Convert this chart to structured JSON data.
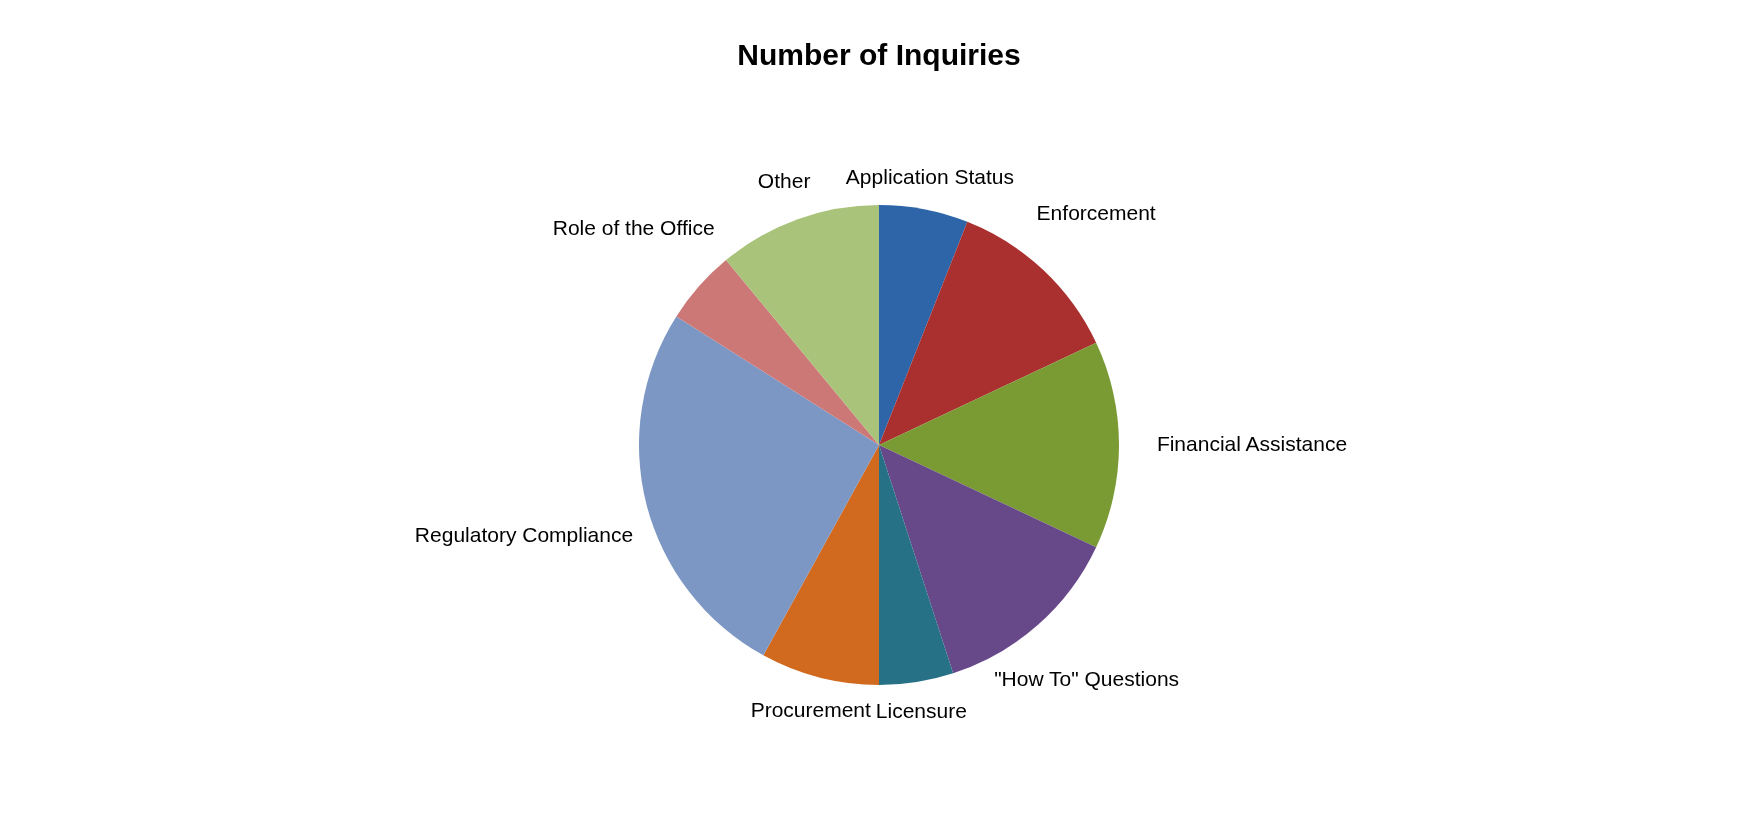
{
  "chart_data": {
    "type": "pie",
    "title": "Number of Inquiries",
    "categories": [
      "Application Status",
      "Enforcement",
      "Financial Assistance",
      "\"How To\" Questions",
      "Licensure",
      "Procurement",
      "Regulatory Compliance",
      "Role of the Office",
      "Other"
    ],
    "values": [
      6,
      12,
      14,
      13,
      5,
      8,
      26,
      5,
      11
    ],
    "colors": [
      "#2e64a8",
      "#a9302e",
      "#7a9a34",
      "#674889",
      "#267186",
      "#d1691f",
      "#7c97c4",
      "#cc7877",
      "#a9c37a"
    ]
  }
}
